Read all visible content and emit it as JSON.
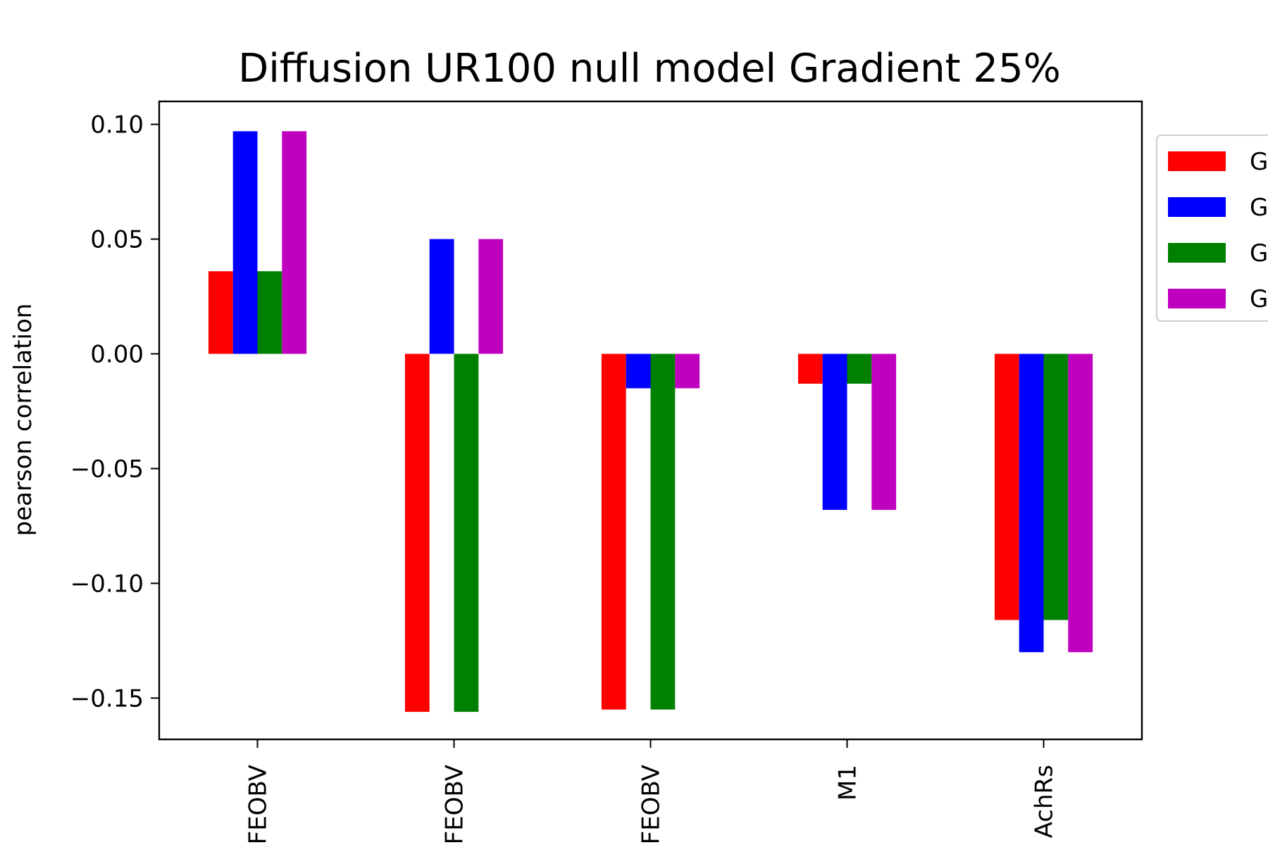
{
  "chart_data": {
    "type": "bar",
    "title": "Diffusion UR100 null model Gradient 25%",
    "xlabel": "",
    "ylabel": "pearson correlation",
    "categories": [
      "FEOBV",
      "FEOBV",
      "FEOBV",
      "M1",
      "AchRs"
    ],
    "series": [
      {
        "name": "G",
        "color": "#ff0000",
        "values": [
          0.036,
          -0.156,
          -0.155,
          -0.013,
          -0.116
        ]
      },
      {
        "name": "G",
        "color": "#0000ff",
        "values": [
          0.097,
          0.05,
          -0.015,
          -0.068,
          -0.13
        ]
      },
      {
        "name": "G",
        "color": "#008000",
        "values": [
          0.036,
          -0.156,
          -0.155,
          -0.013,
          -0.116
        ]
      },
      {
        "name": "G",
        "color": "#bf00bf",
        "values": [
          0.097,
          0.05,
          -0.015,
          -0.068,
          -0.13
        ]
      }
    ],
    "ylim": [
      -0.168,
      0.11
    ],
    "yticks": [
      "0.10",
      "0.05",
      "0.00",
      "−0.05",
      "−0.10",
      "−0.15"
    ],
    "ytick_values": [
      0.1,
      0.05,
      0.0,
      -0.05,
      -0.1,
      -0.15
    ],
    "grid": false,
    "legend_position": "right-outside"
  }
}
